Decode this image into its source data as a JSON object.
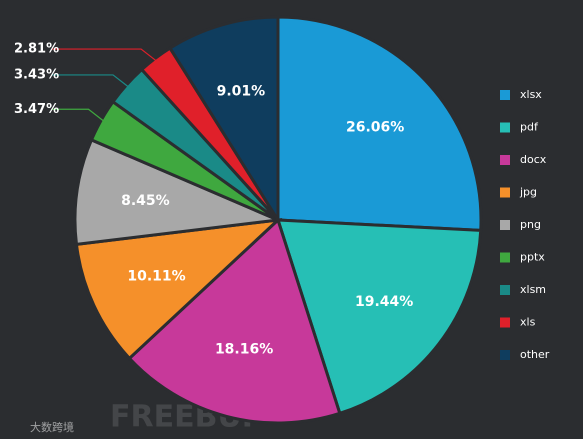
{
  "chart_data": {
    "type": "pie",
    "categories": [
      "xlsx",
      "pdf",
      "docx",
      "jpg",
      "png",
      "pptx",
      "xlsm",
      "xls",
      "other"
    ],
    "values": [
      26.06,
      19.44,
      18.16,
      10.11,
      8.45,
      3.47,
      3.43,
      2.81,
      9.01
    ],
    "value_labels": [
      "26.06%",
      "19.44%",
      "18.16%",
      "10.11%",
      "8.45%",
      "3.47%",
      "3.43%",
      "2.81%",
      "9.01%"
    ],
    "colors": [
      "#1a9ad6",
      "#26bfb5",
      "#c7399a",
      "#f5902a",
      "#a8a8a8",
      "#3fa83f",
      "#1a8a87",
      "#e0202a",
      "#0f3d5e"
    ],
    "legend": "right",
    "watermark": [
      "FREEBUF",
      "大数跨境"
    ]
  }
}
